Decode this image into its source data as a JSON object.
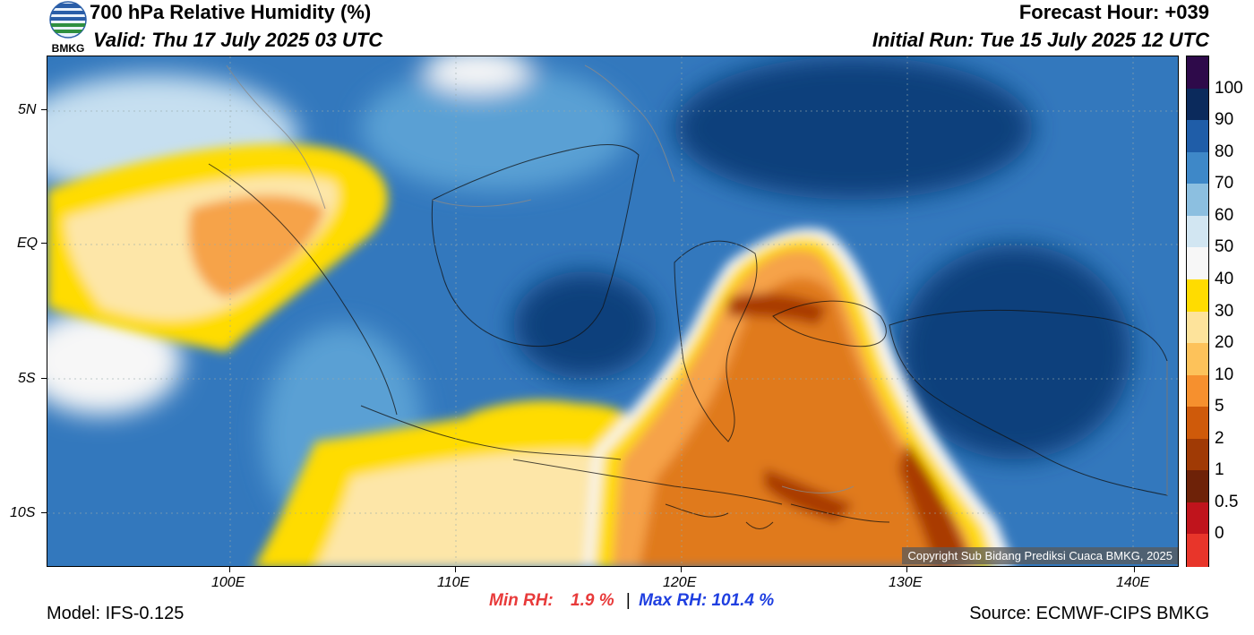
{
  "header": {
    "logo_text": "BMKG",
    "title": "700 hPa Relative Humidity (%)",
    "valid": "Valid: Thu 17 July 2025 03 UTC",
    "forecast_hour": "Forecast Hour: +039",
    "initial_run": "Initial Run: Tue 15 July 2025 12 UTC"
  },
  "map": {
    "lat_ticks": [
      "5N",
      "EQ",
      "5S",
      "10S"
    ],
    "lon_ticks": [
      "100E",
      "110E",
      "120E",
      "130E",
      "140E"
    ],
    "copyright": "Copyright Sub Bidang Prediksi Cuaca BMKG, 2025",
    "field_colors": {
      "dry_deep": "#a93a00",
      "dry": "#e07a1f",
      "dry_light": "#f6a34a",
      "yellow": "#ffdc00",
      "cream": "#fde6a8",
      "white": "#f7f7f7",
      "light_blue": "#c6dff0",
      "mid_blue": "#5aa0d4",
      "blue": "#3378bd",
      "deep_blue": "#0f3f7c"
    }
  },
  "colorbar": {
    "labels": [
      "100",
      "90",
      "80",
      "70",
      "60",
      "50",
      "40",
      "30",
      "20",
      "10",
      "5",
      "2",
      "1",
      "0.5",
      "0"
    ],
    "colors": [
      "#2e0a4a",
      "#0b2a5c",
      "#1f5da8",
      "#3e88c8",
      "#8cbfe0",
      "#d2e6f2",
      "#f7f7f7",
      "#ffdc00",
      "#fde39b",
      "#fdc25a",
      "#f6902e",
      "#cf5a0a",
      "#a03a05",
      "#6e2208",
      "#c0141c",
      "#e8352a"
    ]
  },
  "stats": {
    "min_label": "Min RH:",
    "min_value": "1.9 %",
    "separator": "|",
    "max_label": "Max RH:",
    "max_value": "101.4 %",
    "min_color": "#e83a3a",
    "max_color": "#1f3fe0"
  },
  "footer": {
    "model": "Model: IFS-0.125",
    "source": "Source: ECMWF-CIPS BMKG"
  }
}
